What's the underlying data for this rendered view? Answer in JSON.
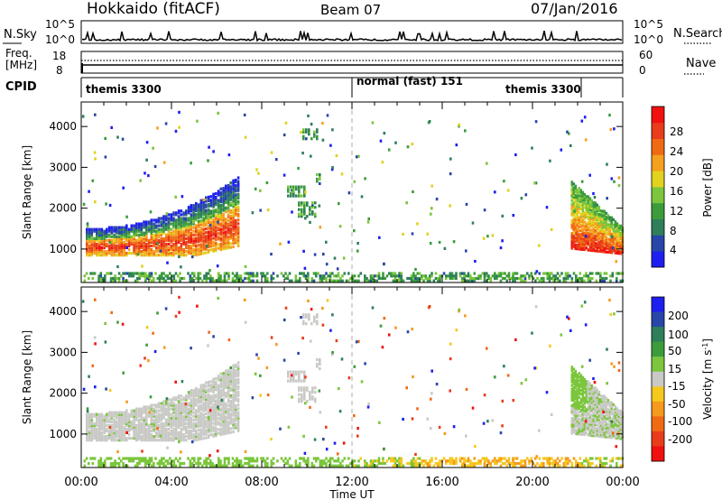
{
  "header": {
    "station": "Hokkaido (fitACF)",
    "beam": "Beam 07",
    "date": "07/Jan/2016"
  },
  "panels": {
    "nsky": {
      "label": "N.Sky",
      "left_ticks": [
        "10^5",
        "10^0"
      ],
      "right_ticks": [
        "10^5",
        "10^0"
      ],
      "right_label": "N.Search"
    },
    "freq": {
      "label_line1": "Freq.",
      "label_line2": "[MHz]",
      "left_ticks": [
        "18",
        "8"
      ],
      "right_ticks": [
        "60",
        "0"
      ],
      "right_label": "Nave"
    },
    "cpid": {
      "label": "CPID",
      "segments": [
        {
          "text": "themis 3300",
          "start_hour": 0
        },
        {
          "text": "normal (fast) 151",
          "start_hour": 12
        },
        {
          "text": "themis 3300",
          "start_hour": 21.75
        }
      ],
      "boundaries_hours": [
        12,
        21.75
      ]
    }
  },
  "colors": {
    "power_scale": [
      "#1e1ef0",
      "#2846a8",
      "#2f7f5a",
      "#3c9c3c",
      "#7bc63c",
      "#e0d21e",
      "#f5a01e",
      "#f06a14",
      "#e83c1a",
      "#f01010"
    ],
    "velocity_scale": [
      "#1e1ef0",
      "#2846a8",
      "#2f7f5a",
      "#3c9c3c",
      "#7bc63c",
      "#c9c9c5",
      "#f5c81e",
      "#f59a1e",
      "#f06a14",
      "#e83c1a",
      "#f01010"
    ],
    "ground_scatter": "#c9c9c5"
  },
  "colorbars": {
    "power": {
      "label": "Power [dB]",
      "ticks": [
        "28",
        "24",
        "20",
        "16",
        "12",
        "8",
        "4"
      ]
    },
    "velocity": {
      "label_main": "Velocity [m s",
      "label_sup": "-1",
      "label_end": "]",
      "ticks": [
        "200",
        "100",
        "50",
        "15",
        "-15",
        "-50",
        "-100",
        "-200"
      ]
    }
  },
  "axes": {
    "x_ticks": [
      "00:00",
      "04:00",
      "08:00",
      "12:00",
      "16:00",
      "20:00",
      "00:00"
    ],
    "x_label": "Time UT",
    "y_label": "Slant Range [km]",
    "y_ticks": [
      "1000",
      "2000",
      "3000",
      "4000"
    ]
  },
  "chart_data": [
    {
      "type": "heatmap",
      "id": "power",
      "xlim_hours": [
        0,
        24
      ],
      "ylim_km": [
        180,
        4600
      ],
      "color_range_db": [
        0,
        32
      ],
      "regions": [
        {
          "t0": 0.2,
          "t1": 7.0,
          "r0": 850,
          "r1": 1900,
          "peak_db": 26,
          "note": "dense echo band rising in range with time"
        },
        {
          "t0": 9.0,
          "t1": 10.5,
          "r0": 1800,
          "r1": 2600,
          "peak_db": 10
        },
        {
          "t0": 9.8,
          "t1": 10.4,
          "r0": 3700,
          "r1": 3950,
          "peak_db": 8
        },
        {
          "t0": 21.7,
          "t1": 24.0,
          "r0": 900,
          "r1": 2500,
          "peak_db": 27
        },
        {
          "t0": 0.0,
          "t1": 24.0,
          "r0": 200,
          "r1": 420,
          "peak_db": 14,
          "note": "near-range clutter"
        }
      ]
    },
    {
      "type": "heatmap",
      "id": "velocity",
      "xlim_hours": [
        0,
        24
      ],
      "ylim_km": [
        180,
        4600
      ],
      "color_range_ms": [
        -250,
        250
      ],
      "regions": [
        {
          "t0": 0.2,
          "t1": 7.0,
          "r0": 900,
          "r1": 2000,
          "velocity_ms": 0,
          "note": "ground scatter (grey)"
        },
        {
          "t0": 21.7,
          "t1": 24.0,
          "r0": 900,
          "r1": 2500,
          "velocity_ms": 10
        },
        {
          "t0": 16.0,
          "t1": 22.0,
          "r0": 200,
          "r1": 400,
          "velocity_ms": -60
        }
      ]
    }
  ]
}
